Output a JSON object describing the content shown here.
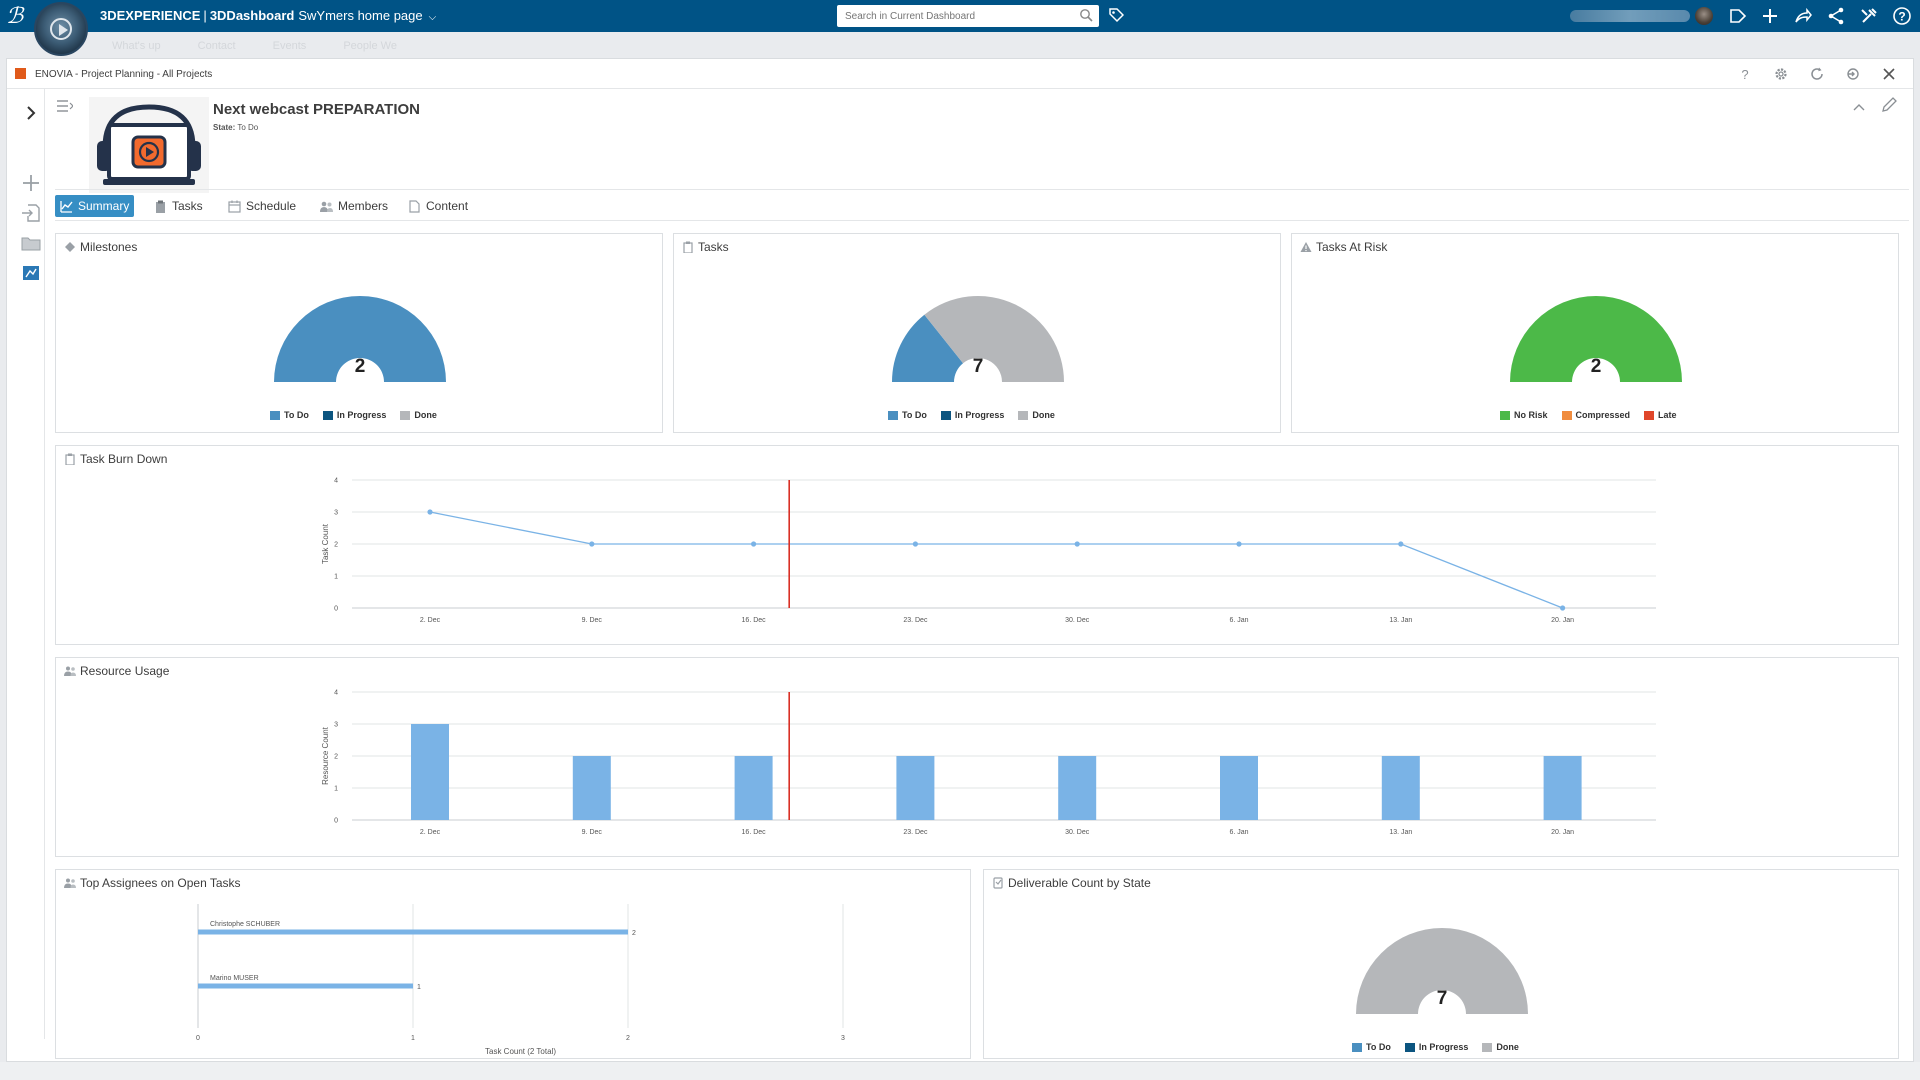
{
  "topbar": {
    "brand_a": "3DEXPERIENCE",
    "brand_sep": "|",
    "brand_b": "3DDashboard",
    "dashboard_name": "SwYmers home page",
    "search_placeholder": "Search in Current Dashboard",
    "color": "#005386"
  },
  "subnav": {
    "items": [
      "What's up",
      "Contact",
      "Events",
      "People We"
    ]
  },
  "widget": {
    "title": "ENOVIA - Project Planning - All Projects"
  },
  "project": {
    "name": "Next webcast PREPARATION",
    "state_label": "State:",
    "state_value": "To Do"
  },
  "tabs": [
    {
      "label": "Summary",
      "icon": "chart-icon",
      "active": true
    },
    {
      "label": "Tasks",
      "icon": "clipboard-icon",
      "active": false
    },
    {
      "label": "Schedule",
      "icon": "calendar-icon",
      "active": false
    },
    {
      "label": "Members",
      "icon": "members-icon",
      "active": false
    },
    {
      "label": "Content",
      "icon": "document-icon",
      "active": false
    }
  ],
  "panels": {
    "milestones": {
      "title": "Milestones",
      "total": "2",
      "legend": [
        "To Do",
        "In Progress",
        "Done"
      ]
    },
    "tasks": {
      "title": "Tasks",
      "total": "7",
      "legend": [
        "To Do",
        "In Progress",
        "Done"
      ]
    },
    "risk": {
      "title": "Tasks At Risk",
      "total": "2",
      "legend": [
        "No Risk",
        "Compressed",
        "Late"
      ]
    },
    "burndown": {
      "title": "Task Burn Down"
    },
    "resource": {
      "title": "Resource Usage"
    },
    "assignees": {
      "title": "Top Assignees on Open Tasks"
    },
    "deliverables": {
      "title": "Deliverable Count by State",
      "total": "7",
      "legend": [
        "To Do",
        "In Progress",
        "Done"
      ]
    }
  },
  "colors": {
    "todo": "#4a8fc0",
    "in_progress": "#0c5580",
    "done": "#b5b7ba",
    "no_risk": "#4cb948",
    "compressed": "#f08c3e",
    "late": "#e0462a",
    "line": "#7ab3e6",
    "today_line": "#d93025"
  },
  "chart_data": [
    {
      "type": "pie",
      "title": "Milestones",
      "style": "half-donut",
      "categories": [
        "To Do",
        "In Progress",
        "Done"
      ],
      "values": [
        2,
        0,
        0
      ]
    },
    {
      "type": "pie",
      "title": "Tasks",
      "style": "half-donut",
      "categories": [
        "To Do",
        "In Progress",
        "Done"
      ],
      "values": [
        2,
        0,
        5
      ]
    },
    {
      "type": "pie",
      "title": "Tasks At Risk",
      "style": "half-donut",
      "categories": [
        "No Risk",
        "Compressed",
        "Late"
      ],
      "values": [
        2,
        0,
        0
      ]
    },
    {
      "type": "line",
      "title": "Task Burn Down",
      "x": [
        "2. Dec",
        "9. Dec",
        "16. Dec",
        "23. Dec",
        "30. Dec",
        "6. Jan",
        "13. Jan",
        "20. Jan"
      ],
      "values": [
        3,
        2,
        2,
        2,
        2,
        2,
        2,
        0
      ],
      "ylabel": "Task Count",
      "ylim": [
        0,
        4
      ],
      "yticks": [
        0,
        1,
        2,
        3,
        4
      ],
      "today_marker": "between 16. Dec and 23. Dec",
      "grid": true
    },
    {
      "type": "bar",
      "title": "Resource Usage",
      "categories": [
        "2. Dec",
        "9. Dec",
        "16. Dec",
        "23. Dec",
        "30. Dec",
        "6. Jan",
        "13. Jan",
        "20. Jan"
      ],
      "values": [
        3,
        2,
        2,
        2,
        2,
        2,
        2,
        2
      ],
      "ylabel": "Resource Count",
      "ylim": [
        0,
        4
      ],
      "yticks": [
        0,
        1,
        2,
        3,
        4
      ],
      "today_marker": "between 16. Dec and 23. Dec",
      "grid": true
    },
    {
      "type": "bar",
      "orientation": "horizontal",
      "title": "Top Assignees on Open Tasks",
      "categories": [
        "Christophe SCHUBER",
        "Marino MUSER"
      ],
      "values": [
        2,
        1
      ],
      "xlabel": "Task Count (2 Total)",
      "xlim": [
        0,
        3
      ],
      "xticks": [
        0,
        1,
        2,
        3
      ]
    },
    {
      "type": "pie",
      "title": "Deliverable Count by State",
      "style": "half-donut",
      "categories": [
        "To Do",
        "In Progress",
        "Done"
      ],
      "values": [
        0,
        0,
        7
      ]
    }
  ]
}
